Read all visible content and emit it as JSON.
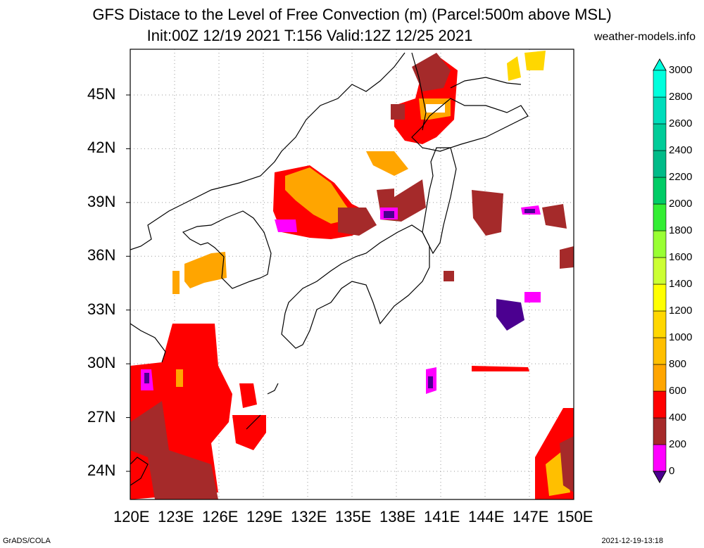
{
  "title": "GFS Distace to the Level of Free Convection (m) (Parcel:500m above MSL)",
  "subtitle": "Init:00Z 12/19 2021 T:156 Valid:12Z 12/25 2021",
  "credit": "weather-models.info",
  "footer_left": "GrADS/COLA",
  "footer_right": "2021-12-19-13:18",
  "lat_labels": [
    "45N",
    "42N",
    "39N",
    "36N",
    "33N",
    "30N",
    "27N",
    "24N"
  ],
  "lat_values": [
    45,
    42,
    39,
    36,
    33,
    30,
    27,
    24
  ],
  "lon_labels": [
    "120E",
    "123E",
    "126E",
    "129E",
    "132E",
    "135E",
    "138E",
    "141E",
    "144E",
    "147E",
    "150E"
  ],
  "lon_values": [
    120,
    123,
    126,
    129,
    132,
    135,
    138,
    141,
    144,
    147,
    150
  ],
  "colorbar": {
    "labels": [
      "0",
      "200",
      "400",
      "600",
      "800",
      "1000",
      "1200",
      "1400",
      "1600",
      "1800",
      "2000",
      "2200",
      "2400",
      "2600",
      "2800",
      "3000"
    ],
    "colors": [
      "#4b0090",
      "#ff00ff",
      "#a52a2a",
      "#ff0000",
      "#ffa500",
      "#ffbf00",
      "#ffd700",
      "#ffff00",
      "#ccff33",
      "#99ff33",
      "#33ee33",
      "#00cc66",
      "#00bb88",
      "#00cc99",
      "#00ddbb",
      "#00ffdd"
    ]
  }
}
